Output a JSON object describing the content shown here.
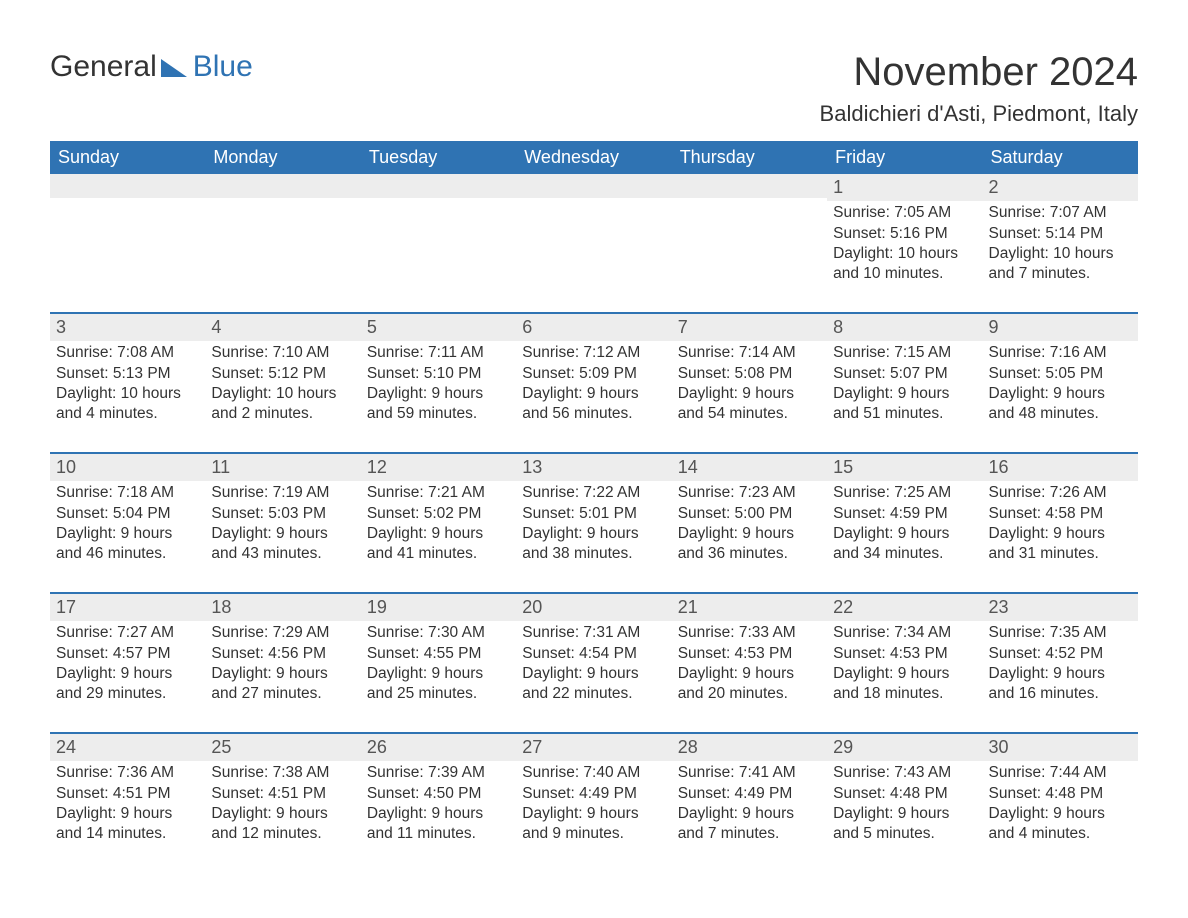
{
  "brand": {
    "part1": "General",
    "part2": "Blue"
  },
  "title": "November 2024",
  "subtitle": "Baldichieri d'Asti, Piedmont, Italy",
  "colors": {
    "header_bg": "#2f73b3",
    "header_text": "#ffffff",
    "band_bg": "#ededed",
    "rule": "#2f73b3",
    "body_text": "#333333",
    "brand_blue": "#2f73b3"
  },
  "typography": {
    "title_fontsize": 40,
    "subtitle_fontsize": 22,
    "dayhead_fontsize": 18,
    "daynum_fontsize": 18,
    "body_fontsize": 15.5
  },
  "day_headers": [
    "Sunday",
    "Monday",
    "Tuesday",
    "Wednesday",
    "Thursday",
    "Friday",
    "Saturday"
  ],
  "weeks": [
    [
      {
        "day": "",
        "sunrise": "",
        "sunset": "",
        "daylight1": "",
        "daylight2": ""
      },
      {
        "day": "",
        "sunrise": "",
        "sunset": "",
        "daylight1": "",
        "daylight2": ""
      },
      {
        "day": "",
        "sunrise": "",
        "sunset": "",
        "daylight1": "",
        "daylight2": ""
      },
      {
        "day": "",
        "sunrise": "",
        "sunset": "",
        "daylight1": "",
        "daylight2": ""
      },
      {
        "day": "",
        "sunrise": "",
        "sunset": "",
        "daylight1": "",
        "daylight2": ""
      },
      {
        "day": "1",
        "sunrise": "Sunrise: 7:05 AM",
        "sunset": "Sunset: 5:16 PM",
        "daylight1": "Daylight: 10 hours",
        "daylight2": "and 10 minutes."
      },
      {
        "day": "2",
        "sunrise": "Sunrise: 7:07 AM",
        "sunset": "Sunset: 5:14 PM",
        "daylight1": "Daylight: 10 hours",
        "daylight2": "and 7 minutes."
      }
    ],
    [
      {
        "day": "3",
        "sunrise": "Sunrise: 7:08 AM",
        "sunset": "Sunset: 5:13 PM",
        "daylight1": "Daylight: 10 hours",
        "daylight2": "and 4 minutes."
      },
      {
        "day": "4",
        "sunrise": "Sunrise: 7:10 AM",
        "sunset": "Sunset: 5:12 PM",
        "daylight1": "Daylight: 10 hours",
        "daylight2": "and 2 minutes."
      },
      {
        "day": "5",
        "sunrise": "Sunrise: 7:11 AM",
        "sunset": "Sunset: 5:10 PM",
        "daylight1": "Daylight: 9 hours",
        "daylight2": "and 59 minutes."
      },
      {
        "day": "6",
        "sunrise": "Sunrise: 7:12 AM",
        "sunset": "Sunset: 5:09 PM",
        "daylight1": "Daylight: 9 hours",
        "daylight2": "and 56 minutes."
      },
      {
        "day": "7",
        "sunrise": "Sunrise: 7:14 AM",
        "sunset": "Sunset: 5:08 PM",
        "daylight1": "Daylight: 9 hours",
        "daylight2": "and 54 minutes."
      },
      {
        "day": "8",
        "sunrise": "Sunrise: 7:15 AM",
        "sunset": "Sunset: 5:07 PM",
        "daylight1": "Daylight: 9 hours",
        "daylight2": "and 51 minutes."
      },
      {
        "day": "9",
        "sunrise": "Sunrise: 7:16 AM",
        "sunset": "Sunset: 5:05 PM",
        "daylight1": "Daylight: 9 hours",
        "daylight2": "and 48 minutes."
      }
    ],
    [
      {
        "day": "10",
        "sunrise": "Sunrise: 7:18 AM",
        "sunset": "Sunset: 5:04 PM",
        "daylight1": "Daylight: 9 hours",
        "daylight2": "and 46 minutes."
      },
      {
        "day": "11",
        "sunrise": "Sunrise: 7:19 AM",
        "sunset": "Sunset: 5:03 PM",
        "daylight1": "Daylight: 9 hours",
        "daylight2": "and 43 minutes."
      },
      {
        "day": "12",
        "sunrise": "Sunrise: 7:21 AM",
        "sunset": "Sunset: 5:02 PM",
        "daylight1": "Daylight: 9 hours",
        "daylight2": "and 41 minutes."
      },
      {
        "day": "13",
        "sunrise": "Sunrise: 7:22 AM",
        "sunset": "Sunset: 5:01 PM",
        "daylight1": "Daylight: 9 hours",
        "daylight2": "and 38 minutes."
      },
      {
        "day": "14",
        "sunrise": "Sunrise: 7:23 AM",
        "sunset": "Sunset: 5:00 PM",
        "daylight1": "Daylight: 9 hours",
        "daylight2": "and 36 minutes."
      },
      {
        "day": "15",
        "sunrise": "Sunrise: 7:25 AM",
        "sunset": "Sunset: 4:59 PM",
        "daylight1": "Daylight: 9 hours",
        "daylight2": "and 34 minutes."
      },
      {
        "day": "16",
        "sunrise": "Sunrise: 7:26 AM",
        "sunset": "Sunset: 4:58 PM",
        "daylight1": "Daylight: 9 hours",
        "daylight2": "and 31 minutes."
      }
    ],
    [
      {
        "day": "17",
        "sunrise": "Sunrise: 7:27 AM",
        "sunset": "Sunset: 4:57 PM",
        "daylight1": "Daylight: 9 hours",
        "daylight2": "and 29 minutes."
      },
      {
        "day": "18",
        "sunrise": "Sunrise: 7:29 AM",
        "sunset": "Sunset: 4:56 PM",
        "daylight1": "Daylight: 9 hours",
        "daylight2": "and 27 minutes."
      },
      {
        "day": "19",
        "sunrise": "Sunrise: 7:30 AM",
        "sunset": "Sunset: 4:55 PM",
        "daylight1": "Daylight: 9 hours",
        "daylight2": "and 25 minutes."
      },
      {
        "day": "20",
        "sunrise": "Sunrise: 7:31 AM",
        "sunset": "Sunset: 4:54 PM",
        "daylight1": "Daylight: 9 hours",
        "daylight2": "and 22 minutes."
      },
      {
        "day": "21",
        "sunrise": "Sunrise: 7:33 AM",
        "sunset": "Sunset: 4:53 PM",
        "daylight1": "Daylight: 9 hours",
        "daylight2": "and 20 minutes."
      },
      {
        "day": "22",
        "sunrise": "Sunrise: 7:34 AM",
        "sunset": "Sunset: 4:53 PM",
        "daylight1": "Daylight: 9 hours",
        "daylight2": "and 18 minutes."
      },
      {
        "day": "23",
        "sunrise": "Sunrise: 7:35 AM",
        "sunset": "Sunset: 4:52 PM",
        "daylight1": "Daylight: 9 hours",
        "daylight2": "and 16 minutes."
      }
    ],
    [
      {
        "day": "24",
        "sunrise": "Sunrise: 7:36 AM",
        "sunset": "Sunset: 4:51 PM",
        "daylight1": "Daylight: 9 hours",
        "daylight2": "and 14 minutes."
      },
      {
        "day": "25",
        "sunrise": "Sunrise: 7:38 AM",
        "sunset": "Sunset: 4:51 PM",
        "daylight1": "Daylight: 9 hours",
        "daylight2": "and 12 minutes."
      },
      {
        "day": "26",
        "sunrise": "Sunrise: 7:39 AM",
        "sunset": "Sunset: 4:50 PM",
        "daylight1": "Daylight: 9 hours",
        "daylight2": "and 11 minutes."
      },
      {
        "day": "27",
        "sunrise": "Sunrise: 7:40 AM",
        "sunset": "Sunset: 4:49 PM",
        "daylight1": "Daylight: 9 hours",
        "daylight2": "and 9 minutes."
      },
      {
        "day": "28",
        "sunrise": "Sunrise: 7:41 AM",
        "sunset": "Sunset: 4:49 PM",
        "daylight1": "Daylight: 9 hours",
        "daylight2": "and 7 minutes."
      },
      {
        "day": "29",
        "sunrise": "Sunrise: 7:43 AM",
        "sunset": "Sunset: 4:48 PM",
        "daylight1": "Daylight: 9 hours",
        "daylight2": "and 5 minutes."
      },
      {
        "day": "30",
        "sunrise": "Sunrise: 7:44 AM",
        "sunset": "Sunset: 4:48 PM",
        "daylight1": "Daylight: 9 hours",
        "daylight2": "and 4 minutes."
      }
    ]
  ]
}
